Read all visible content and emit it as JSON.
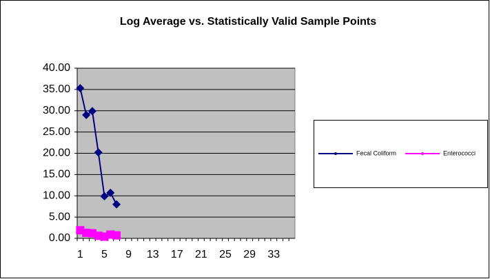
{
  "chart_data": {
    "type": "line",
    "title": "Log Average vs. Statistically Valid Sample Points",
    "categories": [
      "1",
      null,
      null,
      null,
      "5",
      null,
      null,
      null,
      "9",
      null,
      null,
      null,
      "13",
      null,
      null,
      null,
      "17",
      null,
      null,
      null,
      "21",
      null,
      null,
      null,
      "25",
      null,
      null,
      null,
      "29",
      null,
      null,
      null,
      "33",
      null,
      null,
      null
    ],
    "series": [
      {
        "name": "Fecal Coliform",
        "color": "#000080",
        "marker": "diamond",
        "values": [
          35.3,
          29.0,
          29.9,
          20.2,
          9.9,
          10.7,
          8.0,
          null,
          null,
          null,
          null,
          null,
          null,
          null,
          null,
          null,
          null,
          null,
          null,
          null,
          null,
          null,
          null,
          null,
          null,
          null,
          null,
          null,
          null,
          null,
          null,
          null,
          null,
          null,
          null,
          null
        ]
      },
      {
        "name": "Enterococci",
        "color": "#ff00ff",
        "marker": "square",
        "values": [
          1.9,
          1.3,
          1.2,
          0.6,
          0.4,
          0.9,
          0.7,
          null,
          null,
          null,
          null,
          null,
          null,
          null,
          null,
          null,
          null,
          null,
          null,
          null,
          null,
          null,
          null,
          null,
          null,
          null,
          null,
          null,
          null,
          null,
          null,
          null,
          null,
          null,
          null,
          null
        ]
      }
    ],
    "ylim": [
      0,
      40
    ],
    "yticks": [
      {
        "value": 0,
        "label": "0.00"
      },
      {
        "value": 5,
        "label": "5.00"
      },
      {
        "value": 10,
        "label": "10.00"
      },
      {
        "value": 15,
        "label": "15.00"
      },
      {
        "value": 20,
        "label": "20.00"
      },
      {
        "value": 25,
        "label": "25.00"
      },
      {
        "value": 30,
        "label": "30.00"
      },
      {
        "value": 35,
        "label": "35.00"
      },
      {
        "value": 40,
        "label": "40.00"
      }
    ],
    "grid": true,
    "legend": "right"
  }
}
